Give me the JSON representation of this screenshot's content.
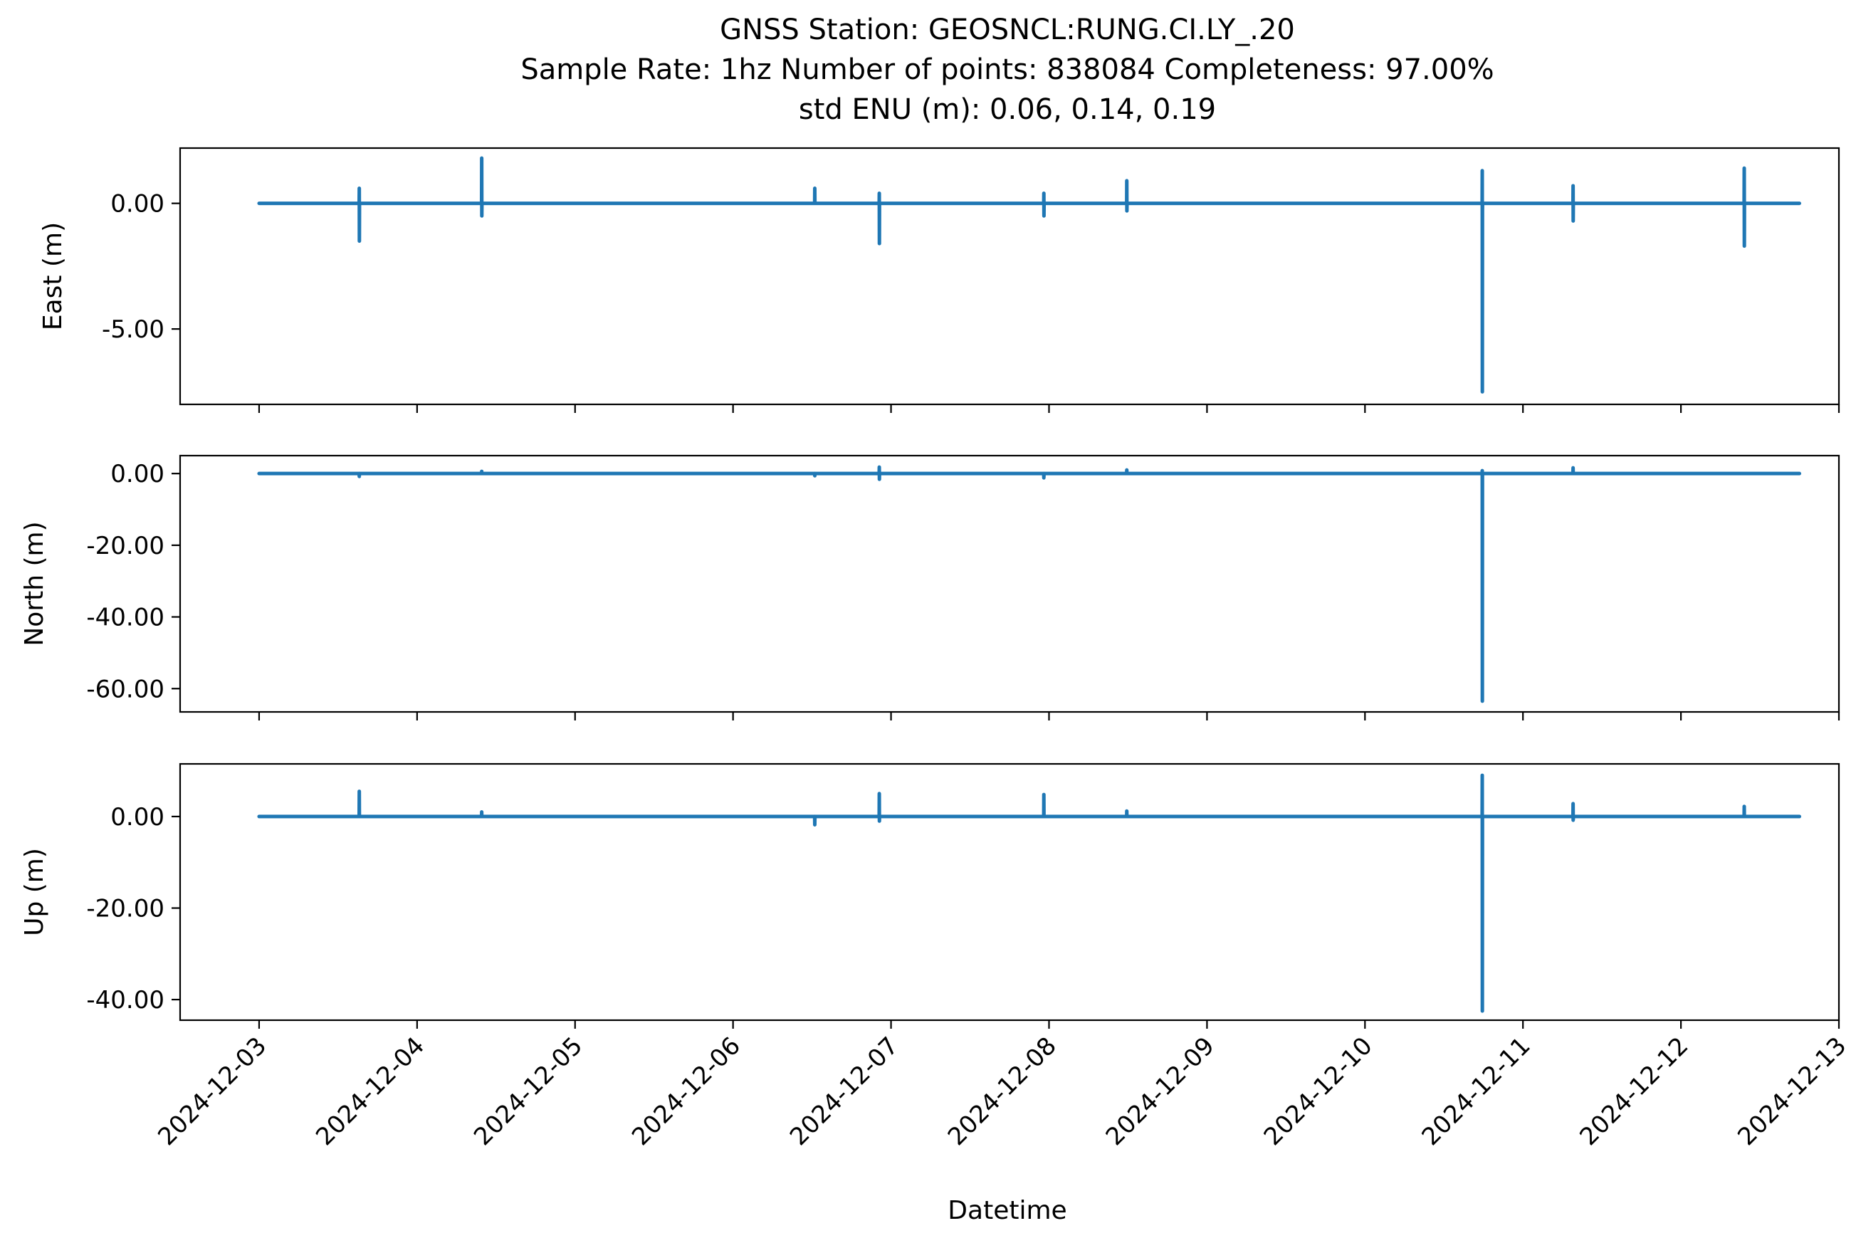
{
  "chart_data": {
    "type": "line",
    "title_lines": [
      "GNSS Station: GEOSNCL:RUNG.CI.LY_.20",
      "Sample Rate: 1hz   Number of points: 838084    Completeness:  97.00%",
      "std ENU (m):  0.06, 0.14, 0.19"
    ],
    "xlabel": "Datetime",
    "x_ticks": [
      "2024-12-03",
      "2024-12-04",
      "2024-12-05",
      "2024-12-06",
      "2024-12-07",
      "2024-12-08",
      "2024-12-09",
      "2024-12-10",
      "2024-12-11",
      "2024-12-12",
      "2024-12-13"
    ],
    "xlim": [
      "2024-12-02T12:00",
      "2024-12-13T00:00"
    ],
    "line_color": "#1f77b4",
    "grid": false,
    "panels": [
      {
        "ylabel": "East (m)",
        "ylim": [
          -8.0,
          2.2
        ],
        "y_ticks": [
          0,
          -5
        ],
        "y_tick_labels": [
          "0.00",
          "-5.00"
        ],
        "series": [
          {
            "x": [
              "2024-12-03T00:00",
              "2024-12-03T15:12",
              "2024-12-03T15:13",
              "2024-12-03T15:14",
              "2024-12-03T15:15",
              "2024-12-04T09:48",
              "2024-12-04T09:49",
              "2024-12-04T09:50",
              "2024-12-04T09:51",
              "2024-12-06T12:24",
              "2024-12-06T12:25",
              "2024-12-06T12:26",
              "2024-12-06T22:12",
              "2024-12-06T22:13",
              "2024-12-06T22:14",
              "2024-12-06T22:15",
              "2024-12-07T23:12",
              "2024-12-07T23:13",
              "2024-12-07T23:14",
              "2024-12-07T23:15",
              "2024-12-08T11:48",
              "2024-12-08T11:49",
              "2024-12-08T11:50",
              "2024-12-08T11:51",
              "2024-12-10T17:48",
              "2024-12-10T17:49",
              "2024-12-10T17:50",
              "2024-12-10T17:51",
              "2024-12-10T17:52",
              "2024-12-11T07:36",
              "2024-12-11T07:37",
              "2024-12-11T07:38",
              "2024-12-11T07:39",
              "2024-12-12T09:36",
              "2024-12-12T09:37",
              "2024-12-12T09:38",
              "2024-12-12T09:39",
              "2024-12-12T18:00"
            ],
            "y": [
              0.0,
              0.0,
              0.6,
              -1.5,
              0.0,
              0.0,
              1.8,
              -0.5,
              0.0,
              0.0,
              0.6,
              0.0,
              0.0,
              0.4,
              -1.6,
              0.0,
              0.0,
              0.4,
              -0.5,
              0.0,
              0.0,
              0.9,
              -0.3,
              0.0,
              0.0,
              1.3,
              -7.5,
              -0.3,
              0.0,
              0.0,
              0.7,
              -0.7,
              0.0,
              0.0,
              1.4,
              -1.7,
              0.0,
              0.0
            ]
          }
        ]
      },
      {
        "ylabel": "North (m)",
        "ylim": [
          -66.5,
          5.0
        ],
        "y_ticks": [
          0,
          -20,
          -40,
          -60
        ],
        "y_tick_labels": [
          "0.00",
          "-20.00",
          "-40.00",
          "-60.00"
        ],
        "series": [
          {
            "x": [
              "2024-12-03T00:00",
              "2024-12-03T15:12",
              "2024-12-03T15:13",
              "2024-12-03T15:14",
              "2024-12-04T09:48",
              "2024-12-04T09:49",
              "2024-12-04T09:50",
              "2024-12-06T12:24",
              "2024-12-06T12:25",
              "2024-12-06T12:26",
              "2024-12-06T22:12",
              "2024-12-06T22:13",
              "2024-12-06T22:14",
              "2024-12-06T22:15",
              "2024-12-07T23:12",
              "2024-12-07T23:13",
              "2024-12-07T23:14",
              "2024-12-08T11:48",
              "2024-12-08T11:49",
              "2024-12-08T11:50",
              "2024-12-10T17:48",
              "2024-12-10T17:49",
              "2024-12-10T17:50",
              "2024-12-10T17:51",
              "2024-12-11T07:36",
              "2024-12-11T07:37",
              "2024-12-11T07:38",
              "2024-12-12T18:00"
            ],
            "y": [
              0.0,
              0.0,
              -0.8,
              0.0,
              0.0,
              0.6,
              0.0,
              0.0,
              -0.6,
              0.0,
              0.0,
              1.8,
              -1.6,
              0.0,
              0.0,
              -1.2,
              0.0,
              0.0,
              1.0,
              0.0,
              0.0,
              0.8,
              -63.5,
              0.0,
              0.0,
              1.6,
              0.0,
              0.0
            ]
          }
        ]
      },
      {
        "ylabel": "Up (m)",
        "ylim": [
          -44.5,
          11.5
        ],
        "y_ticks": [
          0,
          -20,
          -40
        ],
        "y_tick_labels": [
          "0.00",
          "-20.00",
          "-40.00"
        ],
        "series": [
          {
            "x": [
              "2024-12-03T00:00",
              "2024-12-03T15:12",
              "2024-12-03T15:13",
              "2024-12-03T15:14",
              "2024-12-04T09:48",
              "2024-12-04T09:49",
              "2024-12-04T09:50",
              "2024-12-06T12:24",
              "2024-12-06T12:25",
              "2024-12-06T12:26",
              "2024-12-06T22:12",
              "2024-12-06T22:13",
              "2024-12-06T22:14",
              "2024-12-06T22:15",
              "2024-12-07T23:12",
              "2024-12-07T23:13",
              "2024-12-07T23:14",
              "2024-12-08T11:48",
              "2024-12-08T11:49",
              "2024-12-08T11:50",
              "2024-12-10T17:48",
              "2024-12-10T17:49",
              "2024-12-10T17:50",
              "2024-12-10T17:51",
              "2024-12-11T07:36",
              "2024-12-11T07:37",
              "2024-12-11T07:38",
              "2024-12-11T07:39",
              "2024-12-12T09:36",
              "2024-12-12T09:37",
              "2024-12-12T09:38",
              "2024-12-12T18:00"
            ],
            "y": [
              0.0,
              0.0,
              5.5,
              0.0,
              0.0,
              1.0,
              0.0,
              0.0,
              -1.8,
              0.0,
              0.0,
              5.0,
              -1.0,
              0.0,
              0.0,
              4.8,
              0.0,
              0.0,
              1.2,
              0.0,
              0.0,
              9.0,
              -42.5,
              0.0,
              0.0,
              2.8,
              -0.8,
              0.0,
              0.0,
              2.2,
              0.0,
              0.0
            ]
          }
        ]
      }
    ]
  }
}
